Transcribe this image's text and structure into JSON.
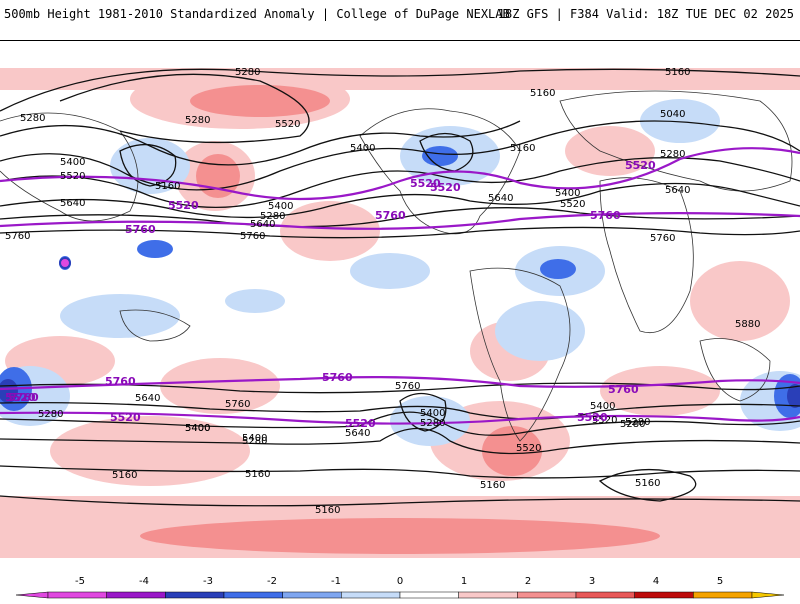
{
  "header": {
    "title": "500mb Height 1981-2010 Standardized Anomaly | College of DuPage NEXLAB",
    "run_info": "18Z GFS | F384 Valid: 18Z TUE DEC 02 2025"
  },
  "map": {
    "black_contour_labels": [
      "5280",
      "5160",
      "5160",
      "5280",
      "5040",
      "5280",
      "5520",
      "5400",
      "5520",
      "5160",
      "5400",
      "5280",
      "5160",
      "5400",
      "5520",
      "5640",
      "5760",
      "5640",
      "5400",
      "5280",
      "5640",
      "5760",
      "5880",
      "5640",
      "5400",
      "5280",
      "5160",
      "5760",
      "5760",
      "5400",
      "5280",
      "5640",
      "5400",
      "5760",
      "5520",
      "5280",
      "5400",
      "5280",
      "5160",
      "5160",
      "5160",
      "5160",
      "5640",
      "5280",
      "5400",
      "5520"
    ],
    "purple_contour_labels": [
      "5520",
      "5520",
      "5520",
      "5760",
      "5760",
      "5760",
      "5760",
      "5520",
      "5520",
      "5520",
      "5760",
      "5760",
      "5760",
      "5520",
      "5520"
    ]
  },
  "colorbar": {
    "ticks": [
      "-5",
      "-4",
      "-3",
      "-2",
      "-1",
      "0",
      "1",
      "2",
      "3",
      "4",
      "5"
    ],
    "colors": [
      "#e048e0",
      "#9a18c8",
      "#2a3fb8",
      "#3f6ee8",
      "#7fa6f0",
      "#c6dcf8",
      "#ffffff",
      "#f9c8c8",
      "#f49090",
      "#e85858",
      "#bd0b0b",
      "#f5a300",
      "#f5c800"
    ]
  }
}
